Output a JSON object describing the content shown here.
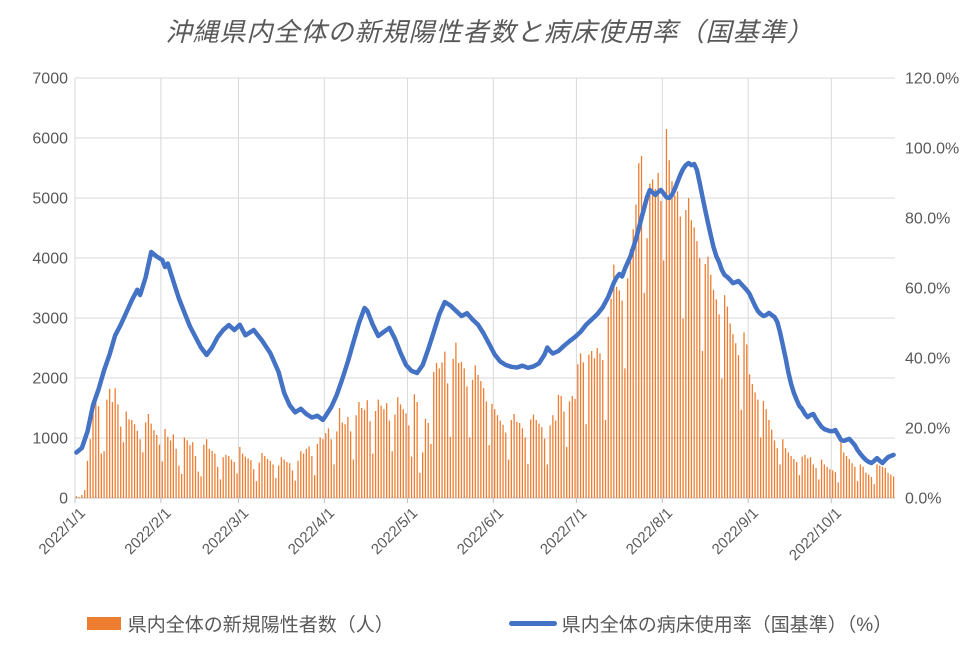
{
  "title": "沖縄県内全体の新規陽性者数と病床使用率（国基準）",
  "legend": {
    "series_bar": "県内全体の新規陽性者数（人）",
    "series_line": "県内全体の病床使用率（国基準）（%）"
  },
  "colors": {
    "bar": "#ED7D31",
    "line": "#4472C4",
    "grid": "#D9D9D9",
    "axis": "#BFBFBF",
    "text": "#595959"
  },
  "chart_data": {
    "type": "combo_bar_line",
    "title": "沖縄県内全体の新規陽性者数と病床使用率（国基準）",
    "x_start": "2022/1/1",
    "x_step": "1 day",
    "n_days": 296,
    "grid": true,
    "legend_position": "bottom",
    "x_tick_labels": [
      "2022/1/1",
      "2022/2/1",
      "2022/3/1",
      "2022/4/1",
      "2022/5/1",
      "2022/6/1",
      "2022/7/1",
      "2022/8/1",
      "2022/9/1",
      "2022/10/1"
    ],
    "x_tick_day_index": [
      0,
      31,
      59,
      90,
      120,
      151,
      181,
      212,
      243,
      273
    ],
    "left_axis": {
      "min": 0,
      "max": 7000,
      "tick_step": 1000,
      "labels": [
        "0",
        "1000",
        "2000",
        "3000",
        "4000",
        "5000",
        "6000",
        "7000"
      ]
    },
    "right_axis": {
      "min": 0,
      "max": 120,
      "tick_step": 20,
      "labels": [
        "0.0%",
        "20.0%",
        "40.0%",
        "60.0%",
        "80.0%",
        "100.0%",
        "120.0%"
      ]
    },
    "series": [
      {
        "name": "県内全体の新規陽性者数（人）",
        "type": "bar",
        "axis": "left",
        "color": "#ED7D31",
        "values": [
          30,
          15,
          50,
          130,
          620,
          980,
          1410,
          1760,
          1530,
          740,
          780,
          1640,
          1820,
          1600,
          1830,
          1560,
          1190,
          930,
          1440,
          1310,
          1300,
          1230,
          1120,
          980,
          760,
          1260,
          1400,
          1240,
          1130,
          1050,
          890,
          610,
          1150,
          1020,
          960,
          1060,
          820,
          540,
          400,
          1010,
          960,
          880,
          930,
          700,
          440,
          360,
          890,
          980,
          820,
          790,
          740,
          520,
          310,
          680,
          720,
          700,
          640,
          600,
          410,
          850,
          740,
          690,
          660,
          630,
          480,
          280,
          590,
          750,
          700,
          650,
          620,
          560,
          330,
          540,
          680,
          640,
          600,
          580,
          460,
          290,
          620,
          780,
          740,
          820,
          860,
          700,
          380,
          900,
          1010,
          980,
          1080,
          1160,
          980,
          560,
          1110,
          1500,
          1260,
          1230,
          1350,
          1110,
          640,
          1380,
          1600,
          1500,
          1470,
          1630,
          1280,
          740,
          1450,
          1640,
          1540,
          1480,
          1580,
          1290,
          780,
          1390,
          1680,
          1560,
          1480,
          1410,
          1210,
          690,
          1730,
          1600,
          420,
          760,
          1320,
          1250,
          900,
          2100,
          2250,
          2160,
          2260,
          2440,
          1910,
          1020,
          2320,
          2590,
          2250,
          2270,
          2160,
          1860,
          1010,
          1970,
          2210,
          2050,
          1950,
          1830,
          1610,
          880,
          1570,
          1480,
          1380,
          1290,
          1220,
          1090,
          640,
          1300,
          1400,
          1270,
          1250,
          1160,
          1010,
          570,
          1310,
          1390,
          1300,
          1240,
          1180,
          990,
          560,
          1210,
          1380,
          1290,
          1720,
          1700,
          1440,
          850,
          1610,
          1700,
          1650,
          2230,
          2410,
          2260,
          1230,
          2390,
          2450,
          2330,
          2500,
          2410,
          2300,
          1300,
          3020,
          3320,
          3890,
          3520,
          3460,
          3290,
          2160,
          3660,
          4150,
          4480,
          4890,
          5580,
          5700,
          3420,
          4330,
          5240,
          5310,
          5150,
          5420,
          4950,
          3960,
          6150,
          5630,
          5280,
          5040,
          5110,
          4690,
          2990,
          4800,
          5000,
          4630,
          4510,
          4280,
          4000,
          2450,
          3900,
          4020,
          3720,
          3470,
          3310,
          3060,
          1990,
          3380,
          3190,
          2910,
          2730,
          2580,
          2380,
          1470,
          2760,
          2560,
          2060,
          1900,
          1760,
          1640,
          1010,
          1620,
          1480,
          1300,
          1140,
          960,
          830,
          560,
          980,
          830,
          760,
          700,
          650,
          600,
          380,
          690,
          720,
          660,
          680,
          560,
          500,
          310,
          640,
          560,
          520,
          480,
          460,
          430,
          260,
          1000,
          760,
          700,
          650,
          580,
          520,
          280,
          560,
          520,
          420,
          390,
          350,
          230,
          560,
          540,
          520,
          500,
          420,
          390,
          360
        ]
      },
      {
        "name": "県内全体の病床使用率（国基準）（%）",
        "type": "line",
        "axis": "right",
        "color": "#4472C4",
        "points": [
          [
            0,
            13
          ],
          [
            2,
            14.3
          ],
          [
            4,
            19
          ],
          [
            6,
            26.5
          ],
          [
            8,
            31
          ],
          [
            10,
            36.5
          ],
          [
            12,
            41
          ],
          [
            14,
            46.5
          ],
          [
            16,
            49.5
          ],
          [
            18,
            53
          ],
          [
            20,
            56.5
          ],
          [
            22,
            59.5
          ],
          [
            23,
            58
          ],
          [
            25,
            63
          ],
          [
            27,
            70.3
          ],
          [
            29,
            69
          ],
          [
            31,
            68
          ],
          [
            32,
            66
          ],
          [
            33,
            67
          ],
          [
            35,
            62
          ],
          [
            37,
            57
          ],
          [
            39,
            53
          ],
          [
            41,
            49
          ],
          [
            43,
            46
          ],
          [
            45,
            43
          ],
          [
            47,
            40.9
          ],
          [
            49,
            43
          ],
          [
            51,
            46
          ],
          [
            53,
            48
          ],
          [
            55,
            49.4
          ],
          [
            57,
            48
          ],
          [
            59,
            49.5
          ],
          [
            61,
            46.5
          ],
          [
            64,
            48
          ],
          [
            67,
            45
          ],
          [
            70,
            41.4
          ],
          [
            73,
            36
          ],
          [
            75,
            30
          ],
          [
            77,
            26.5
          ],
          [
            79,
            24.5
          ],
          [
            81,
            25.5
          ],
          [
            83,
            24
          ],
          [
            85,
            23
          ],
          [
            87,
            23.5
          ],
          [
            89,
            22.3
          ],
          [
            90,
            23.5
          ],
          [
            92,
            26
          ],
          [
            94,
            29.5
          ],
          [
            96,
            34
          ],
          [
            98,
            39
          ],
          [
            100,
            44.5
          ],
          [
            102,
            50
          ],
          [
            104,
            54.3
          ],
          [
            105,
            53.5
          ],
          [
            107,
            49.5
          ],
          [
            109,
            46.3
          ],
          [
            111,
            47.5
          ],
          [
            113,
            48.6
          ],
          [
            115,
            45.5
          ],
          [
            117,
            41.5
          ],
          [
            119,
            38
          ],
          [
            121,
            36.3
          ],
          [
            123,
            35.7
          ],
          [
            125,
            38
          ],
          [
            127,
            42.5
          ],
          [
            129,
            47.5
          ],
          [
            131,
            52.5
          ],
          [
            133,
            56
          ],
          [
            135,
            55
          ],
          [
            137,
            53.5
          ],
          [
            139,
            52
          ],
          [
            141,
            52.8
          ],
          [
            143,
            51
          ],
          [
            145,
            49.5
          ],
          [
            147,
            47
          ],
          [
            149,
            44
          ],
          [
            151,
            41
          ],
          [
            153,
            39
          ],
          [
            155,
            38
          ],
          [
            157,
            37.5
          ],
          [
            159,
            37.3
          ],
          [
            161,
            37.8
          ],
          [
            163,
            37.2
          ],
          [
            165,
            37.6
          ],
          [
            167,
            38.5
          ],
          [
            169,
            41
          ],
          [
            170,
            43
          ],
          [
            171,
            42
          ],
          [
            172,
            41.3
          ],
          [
            174,
            42
          ],
          [
            176,
            43.5
          ],
          [
            178,
            44.8
          ],
          [
            180,
            46
          ],
          [
            182,
            47.5
          ],
          [
            184,
            49.5
          ],
          [
            186,
            51
          ],
          [
            188,
            52.5
          ],
          [
            190,
            54.5
          ],
          [
            192,
            57.5
          ],
          [
            194,
            61.5
          ],
          [
            195,
            63
          ],
          [
            196,
            64
          ],
          [
            197,
            63.3
          ],
          [
            198,
            65.5
          ],
          [
            200,
            69
          ],
          [
            202,
            74
          ],
          [
            204,
            80
          ],
          [
            206,
            86
          ],
          [
            207,
            88
          ],
          [
            208,
            87.3
          ],
          [
            209,
            86.6
          ],
          [
            210,
            87.4
          ],
          [
            211,
            88
          ],
          [
            212,
            87
          ],
          [
            213,
            85.9
          ],
          [
            214,
            85.7
          ],
          [
            215,
            86.6
          ],
          [
            216,
            88.3
          ],
          [
            217,
            90.3
          ],
          [
            218,
            92.3
          ],
          [
            219,
            94
          ],
          [
            220,
            95.1
          ],
          [
            221,
            95.7
          ],
          [
            222,
            95.1
          ],
          [
            223,
            95.4
          ],
          [
            224,
            93.7
          ],
          [
            225,
            90
          ],
          [
            226,
            86
          ],
          [
            227,
            82.3
          ],
          [
            228,
            78.6
          ],
          [
            229,
            75
          ],
          [
            230,
            71.7
          ],
          [
            231,
            69.1
          ],
          [
            232,
            67.4
          ],
          [
            233,
            65.1
          ],
          [
            234,
            63.7
          ],
          [
            235,
            63.1
          ],
          [
            236,
            62.3
          ],
          [
            237,
            61.4
          ],
          [
            238,
            61.7
          ],
          [
            239,
            62
          ],
          [
            240,
            61.1
          ],
          [
            241,
            60.3
          ],
          [
            242,
            59.4
          ],
          [
            243,
            58.3
          ],
          [
            244,
            56.6
          ],
          [
            245,
            54.9
          ],
          [
            246,
            53.4
          ],
          [
            247,
            52.6
          ],
          [
            248,
            52
          ],
          [
            249,
            52.3
          ],
          [
            250,
            52.9
          ],
          [
            251,
            52.3
          ],
          [
            252,
            51.7
          ],
          [
            253,
            50.3
          ],
          [
            254,
            47.4
          ],
          [
            255,
            43.7
          ],
          [
            256,
            40
          ],
          [
            257,
            36
          ],
          [
            258,
            32.6
          ],
          [
            259,
            30
          ],
          [
            260,
            28
          ],
          [
            261,
            26.3
          ],
          [
            262,
            25.4
          ],
          [
            263,
            24
          ],
          [
            264,
            23.1
          ],
          [
            265,
            23.7
          ],
          [
            266,
            24
          ],
          [
            267,
            22.6
          ],
          [
            268,
            21.4
          ],
          [
            269,
            20.3
          ],
          [
            270,
            19.7
          ],
          [
            271,
            19.4
          ],
          [
            272,
            19.1
          ],
          [
            273,
            19.1
          ],
          [
            274,
            19.4
          ],
          [
            275,
            18
          ],
          [
            276,
            16.6
          ],
          [
            277,
            16.3
          ],
          [
            278,
            16.6
          ],
          [
            279,
            16.9
          ],
          [
            280,
            16
          ],
          [
            281,
            15.1
          ],
          [
            282,
            13.7
          ],
          [
            283,
            12.6
          ],
          [
            284,
            11.7
          ],
          [
            285,
            10.9
          ],
          [
            286,
            10.3
          ],
          [
            287,
            10
          ],
          [
            288,
            10.6
          ],
          [
            289,
            11.4
          ],
          [
            290,
            10.6
          ],
          [
            291,
            10
          ],
          [
            292,
            10.9
          ],
          [
            293,
            11.7
          ],
          [
            294,
            12
          ],
          [
            295,
            12.3
          ]
        ]
      }
    ]
  }
}
